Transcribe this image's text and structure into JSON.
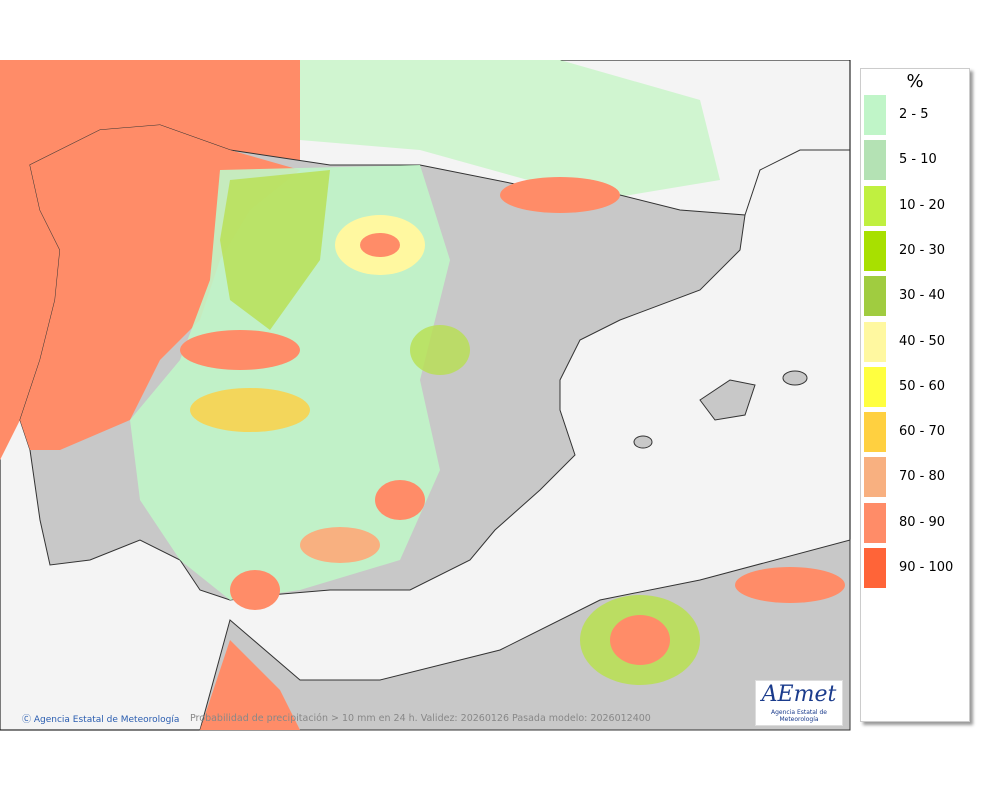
{
  "legend": {
    "title": "%",
    "items": [
      {
        "label": "2 - 5",
        "color": "#c0f5c8"
      },
      {
        "label": "5 - 10",
        "color": "#b4e2b4"
      },
      {
        "label": "10 - 20",
        "color": "#c0f040"
      },
      {
        "label": "20 - 30",
        "color": "#a8e000"
      },
      {
        "label": "30 - 40",
        "color": "#a0cc40"
      },
      {
        "label": "40 - 50",
        "color": "#fff8a0"
      },
      {
        "label": "50 - 60",
        "color": "#ffff40"
      },
      {
        "label": "60 - 70",
        "color": "#ffd040"
      },
      {
        "label": "70 - 80",
        "color": "#f8b080"
      },
      {
        "label": "80 - 90",
        "color": "#ff8c68"
      },
      {
        "label": "90 - 100",
        "color": "#ff6438"
      }
    ]
  },
  "footer": {
    "credit": "Ⓒ Agencia Estatal de Meteorología",
    "caption": "Probabilidad de precipitación > 10 mm en 24 h. Validez: 20260126 Pasada modelo: 2026012400"
  },
  "logo": {
    "name": "AEmet",
    "subtitle": "Agencia Estatal de Meteorología"
  }
}
